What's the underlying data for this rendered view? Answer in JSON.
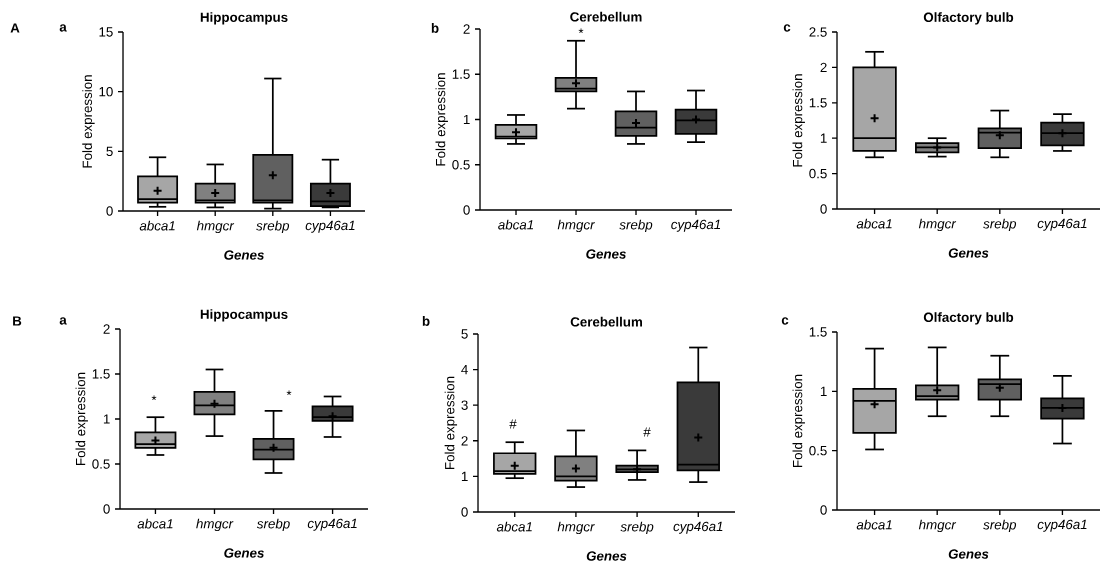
{
  "chart_data": [
    {
      "type": "box",
      "title": "Hippocampus",
      "xlabel": "Genes",
      "ylabel": "Fold expression",
      "annotations": [
        "A",
        "a"
      ],
      "categories": [
        "abca1",
        "hmgcr",
        "srebp",
        "cyp46a1"
      ],
      "colors": [
        "#a6a6a6",
        "#808080",
        "#606060",
        "#3a3a3a"
      ],
      "ylim": [
        0,
        15
      ],
      "yticks": [
        0,
        5,
        10,
        15
      ],
      "boxes": [
        {
          "low": 0.35,
          "q1": 0.7,
          "median": 1.0,
          "q3": 2.9,
          "high": 4.5,
          "mean": 1.7
        },
        {
          "low": 0.3,
          "q1": 0.7,
          "median": 0.9,
          "q3": 2.3,
          "high": 3.9,
          "mean": 1.5
        },
        {
          "low": 0.2,
          "q1": 0.7,
          "median": 0.9,
          "q3": 4.7,
          "high": 11.1,
          "mean": 3.0
        },
        {
          "low": 0.3,
          "q1": 0.4,
          "median": 0.8,
          "q3": 2.3,
          "high": 4.3,
          "mean": 1.5
        }
      ]
    },
    {
      "type": "box",
      "title": "Cerebellum",
      "xlabel": "Genes",
      "ylabel": "Fold expression",
      "annotations": [
        "b",
        "*"
      ],
      "categories": [
        "abca1",
        "hmgcr",
        "srebp",
        "cyp46a1"
      ],
      "colors": [
        "#a6a6a6",
        "#808080",
        "#606060",
        "#3a3a3a"
      ],
      "ylim": [
        0,
        2
      ],
      "yticks": [
        0,
        0.5,
        1,
        1.5,
        2
      ],
      "boxes": [
        {
          "low": 0.73,
          "q1": 0.79,
          "median": 0.81,
          "q3": 0.94,
          "high": 1.05,
          "mean": 0.86
        },
        {
          "low": 1.12,
          "q1": 1.31,
          "median": 1.34,
          "q3": 1.46,
          "high": 1.87,
          "mean": 1.4
        },
        {
          "low": 0.73,
          "q1": 0.82,
          "median": 0.91,
          "q3": 1.09,
          "high": 1.31,
          "mean": 0.96
        },
        {
          "low": 0.75,
          "q1": 0.84,
          "median": 0.99,
          "q3": 1.11,
          "high": 1.32,
          "mean": 1.0
        }
      ]
    },
    {
      "type": "box",
      "title": "Olfactory bulb",
      "xlabel": "Genes",
      "ylabel": "Fold expression",
      "annotations": [
        "c"
      ],
      "categories": [
        "abca1",
        "hmgcr",
        "srebp",
        "cyp46a1"
      ],
      "colors": [
        "#a6a6a6",
        "#808080",
        "#606060",
        "#3a3a3a"
      ],
      "ylim": [
        0,
        2.5
      ],
      "yticks": [
        0,
        0.5,
        1,
        1.5,
        2,
        2.5
      ],
      "boxes": [
        {
          "low": 0.73,
          "q1": 0.82,
          "median": 1.0,
          "q3": 2.0,
          "high": 2.22,
          "mean": 1.28
        },
        {
          "low": 0.74,
          "q1": 0.8,
          "median": 0.87,
          "q3": 0.93,
          "high": 1.0,
          "mean": 0.87
        },
        {
          "low": 0.73,
          "q1": 0.86,
          "median": 1.08,
          "q3": 1.14,
          "high": 1.39,
          "mean": 1.04
        },
        {
          "low": 0.82,
          "q1": 0.9,
          "median": 1.07,
          "q3": 1.22,
          "high": 1.34,
          "mean": 1.07
        }
      ]
    },
    {
      "type": "box",
      "title": "Hippocampus",
      "xlabel": "Genes",
      "ylabel": "Fold expression",
      "annotations": [
        "B",
        "a",
        "*",
        "*"
      ],
      "categories": [
        "abca1",
        "hmgcr",
        "srebp",
        "cyp46a1"
      ],
      "colors": [
        "#a6a6a6",
        "#808080",
        "#606060",
        "#3a3a3a"
      ],
      "ylim": [
        0,
        2
      ],
      "yticks": [
        0,
        0.5,
        1,
        1.5,
        2
      ],
      "boxes": [
        {
          "low": 0.6,
          "q1": 0.68,
          "median": 0.72,
          "q3": 0.85,
          "high": 1.02,
          "mean": 0.76
        },
        {
          "low": 0.81,
          "q1": 1.05,
          "median": 1.15,
          "q3": 1.3,
          "high": 1.55,
          "mean": 1.17
        },
        {
          "low": 0.4,
          "q1": 0.55,
          "median": 0.66,
          "q3": 0.78,
          "high": 1.09,
          "mean": 0.68
        },
        {
          "low": 0.8,
          "q1": 0.98,
          "median": 1.02,
          "q3": 1.14,
          "high": 1.25,
          "mean": 1.03
        }
      ]
    },
    {
      "type": "box",
      "title": "Cerebellum",
      "xlabel": "Genes",
      "ylabel": "Fold expression",
      "annotations": [
        "b",
        "#",
        "#"
      ],
      "categories": [
        "abca1",
        "hmgcr",
        "srebp",
        "cyp46a1"
      ],
      "colors": [
        "#a6a6a6",
        "#808080",
        "#606060",
        "#3a3a3a"
      ],
      "ylim": [
        0,
        5
      ],
      "yticks": [
        0,
        1,
        2,
        3,
        4,
        5
      ],
      "boxes": [
        {
          "low": 0.95,
          "q1": 1.07,
          "median": 1.15,
          "q3": 1.65,
          "high": 1.96,
          "mean": 1.3
        },
        {
          "low": 0.7,
          "q1": 0.88,
          "median": 1.0,
          "q3": 1.56,
          "high": 2.29,
          "mean": 1.22
        },
        {
          "low": 0.9,
          "q1": 1.12,
          "median": 1.2,
          "q3": 1.3,
          "high": 1.73,
          "mean": 1.2
        },
        {
          "low": 0.84,
          "q1": 1.17,
          "median": 1.33,
          "q3": 3.64,
          "high": 4.62,
          "mean": 2.09
        }
      ]
    },
    {
      "type": "box",
      "title": "Olfactory bulb",
      "xlabel": "Genes",
      "ylabel": "Fold expression",
      "annotations": [
        "c"
      ],
      "categories": [
        "abca1",
        "hmgcr",
        "srebp",
        "cyp46a1"
      ],
      "colors": [
        "#a6a6a6",
        "#808080",
        "#606060",
        "#3a3a3a"
      ],
      "ylim": [
        0,
        1.5
      ],
      "yticks": [
        0,
        0.5,
        1,
        1.5
      ],
      "boxes": [
        {
          "low": 0.51,
          "q1": 0.65,
          "median": 0.92,
          "q3": 1.02,
          "high": 1.36,
          "mean": 0.89
        },
        {
          "low": 0.79,
          "q1": 0.93,
          "median": 0.96,
          "q3": 1.05,
          "high": 1.37,
          "mean": 1.01
        },
        {
          "low": 0.79,
          "q1": 0.93,
          "median": 1.06,
          "q3": 1.1,
          "high": 1.3,
          "mean": 1.03
        },
        {
          "low": 0.56,
          "q1": 0.77,
          "median": 0.86,
          "q3": 0.94,
          "high": 1.13,
          "mean": 0.86
        }
      ]
    }
  ]
}
